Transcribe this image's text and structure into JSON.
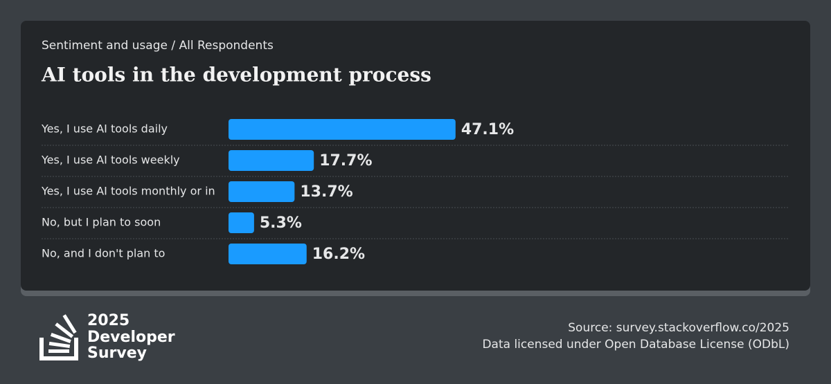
{
  "chart_data": {
    "type": "bar",
    "orientation": "horizontal",
    "subtitle": "Sentiment and usage / All Respondents",
    "title": "AI tools in the development process",
    "categories": [
      "Yes, I use AI tools daily",
      "Yes, I use AI tools weekly",
      "Yes, I use AI tools monthly or in",
      "No, but I plan to soon",
      "No, and I don't plan to"
    ],
    "values": [
      47.1,
      17.7,
      13.7,
      5.3,
      16.2
    ],
    "value_labels": [
      "47.1%",
      "17.7%",
      "13.7%",
      "5.3%",
      "16.2%"
    ],
    "color": "#1a9bff"
  },
  "footer": {
    "logo_text": [
      "2025",
      "Developer",
      "Survey"
    ],
    "source": "Source: survey.stackoverflow.co/2025",
    "license": "Data licensed under Open Database License (ODbL)"
  }
}
